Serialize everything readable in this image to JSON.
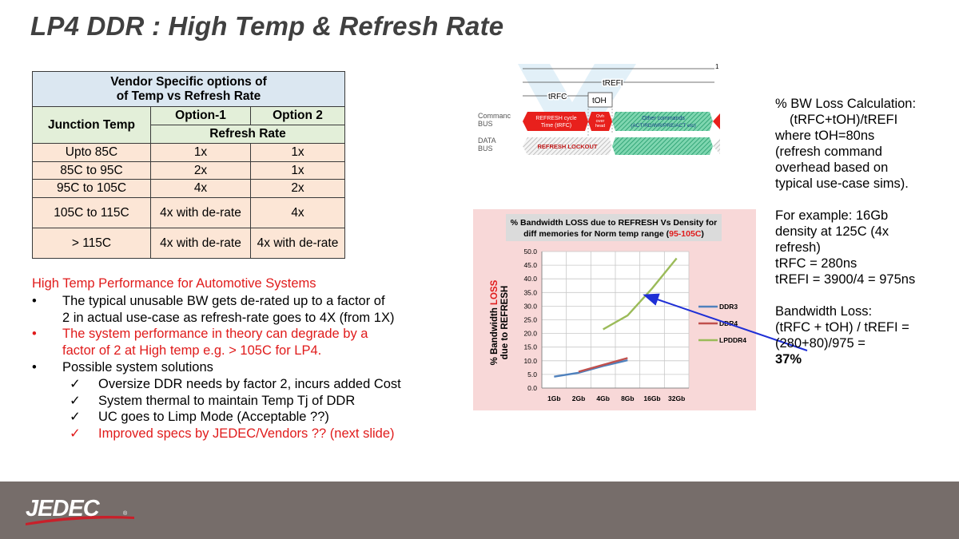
{
  "slide": {
    "title": "LP4 DDR  : High Temp & Refresh Rate"
  },
  "table": {
    "header_line1": "Vendor Specific options of",
    "header_line2": "of Temp vs Refresh Rate",
    "col_junction": "Junction Temp",
    "col_option1": "Option-1",
    "col_option2": "Option 2",
    "subheader": "Refresh Rate",
    "rows": [
      {
        "temp": "Upto 85C",
        "opt1": "1x",
        "opt2": "1x"
      },
      {
        "temp": "85C to 95C",
        "opt1": "2x",
        "opt2": "1x"
      },
      {
        "temp": "95C to 105C",
        "opt1": "4x",
        "opt2": "2x"
      },
      {
        "temp": "105C to 115C",
        "opt1": "4x with de-rate",
        "opt2": "4x"
      },
      {
        "temp": "> 115C",
        "opt1": "4x with de-rate",
        "opt2": "4x with de-rate"
      }
    ]
  },
  "bullets": {
    "heading": "High Temp Performance for Automotive Systems",
    "b1_line1": "The typical unusable BW gets de-rated up to a factor of",
    "b1_line2": "2 in actual use-case as refresh-rate goes to 4X (from 1X)",
    "b2_line1": "The system performance in theory can degrade by a",
    "b2_line2": "factor of 2 at High temp e.g. > 105C for LP4.",
    "b3": "Possible system solutions",
    "checks": [
      "Oversize DDR needs by factor 2, incurs added Cost",
      "System thermal to maintain Temp Tj of DDR",
      "UC goes to Limp Mode  (Acceptable ??)",
      "Improved specs by JEDEC/Vendors ?? (next slide)"
    ],
    "bullet_glyph": "•",
    "check_glyph": "✓"
  },
  "timing": {
    "tick": "1",
    "trefi": "tREFI",
    "trfc": "tRFC",
    "toh": "tOH",
    "cmd_label1": "Commanc",
    "cmd_label2": "BUS",
    "data_label1": "DATA",
    "data_label2": "BUS",
    "refresh_line1": "REFRESH cycle",
    "refresh_line2": "Time (tRFC)",
    "ovh_line1": "Ovh",
    "ovh_line2": "over",
    "ovh_line3": "head",
    "other_line1": "Other commands",
    "other_line2": "(ACT/RD/WR/PRE/ACT etc)",
    "lockout": "REFRESH LOCKOUT"
  },
  "chart_data": {
    "type": "line",
    "title_line1": "% Bandwidth LOSS due to REFRESH Vs Density for",
    "title_line2_prefix": "diff memories for Norm temp range (",
    "title_line2_highlight": "95-105C",
    "title_line2_suffix": ")",
    "ylabel_part1": "% Bandwidth ",
    "ylabel_part2": "LOSS",
    "ylabel_line2": "due to REFRESH",
    "categories": [
      "1Gb",
      "2Gb",
      "4Gb",
      "8Gb",
      "16Gb",
      "32Gb"
    ],
    "y_ticks": [
      "0.0",
      "5.0",
      "10.0",
      "15.0",
      "20.0",
      "25.0",
      "30.0",
      "35.0",
      "40.0",
      "45.0",
      "50.0"
    ],
    "ylim": [
      0,
      50
    ],
    "grid": true,
    "legend": "right",
    "series": [
      {
        "name": "DDR3",
        "color": "#4f81bd",
        "values": [
          4.2,
          5.6,
          8.1,
          10.2,
          null,
          null
        ]
      },
      {
        "name": "DDR4",
        "color": "#c0504d",
        "values": [
          null,
          6.0,
          8.5,
          11.0,
          null,
          null
        ]
      },
      {
        "name": "LPDDR4",
        "color": "#9bbb59",
        "values": [
          null,
          null,
          21.5,
          26.6,
          36.5,
          47.5
        ]
      }
    ]
  },
  "calc": {
    "l1": "% BW Loss Calculation:",
    "l2": "(tRFC+tOH)/tREFI",
    "l3": "where tOH=80ns",
    "l4": "(refresh command",
    "l5": "overhead based on",
    "l6": "typical use-case sims).",
    "l7": "For example:  16Gb",
    "l8": "density at 125C (4x",
    "l9": "refresh)",
    "l10": "tRFC = 280ns",
    "l11": "tREFI = 3900/4 = 975ns",
    "l12": "Bandwidth Loss:",
    "l13": "(tRFC + tOH) / tREFI =",
    "l14": "(280+80)/975 =",
    "l15": "37%"
  },
  "footer": {
    "logo_text": "JEDEC",
    "logo_mark": "®",
    "footer_color": "#766d6a"
  }
}
